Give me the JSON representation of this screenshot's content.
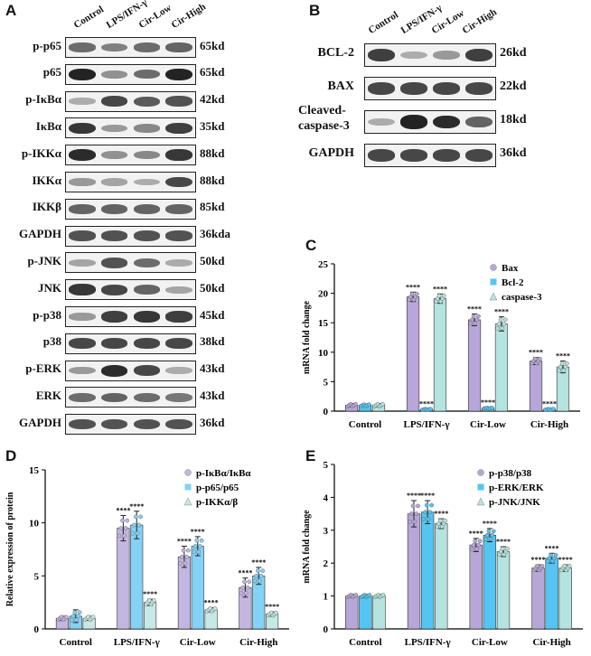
{
  "panels": {
    "A": "A",
    "B": "B",
    "C": "C",
    "D": "D",
    "E": "E"
  },
  "lanes": [
    "Control",
    "LPS/IFN-γ",
    "Cir-Low",
    "Cir-High"
  ],
  "blots_A": [
    {
      "name": "p-p65",
      "kd": "65kd",
      "levels": [
        0.55,
        0.45,
        0.55,
        0.6
      ]
    },
    {
      "name": "p65",
      "kd": "65kd",
      "levels": [
        0.95,
        0.35,
        0.55,
        0.95
      ]
    },
    {
      "name": "p-IκBα",
      "kd": "42kd",
      "levels": [
        0.2,
        0.75,
        0.65,
        0.7
      ]
    },
    {
      "name": "IκBα",
      "kd": "35kd",
      "levels": [
        0.85,
        0.3,
        0.4,
        0.8
      ]
    },
    {
      "name": "p-IKKα",
      "kd": "88kd",
      "levels": [
        0.9,
        0.35,
        0.4,
        0.85
      ]
    },
    {
      "name": "IKKα",
      "kd": "88kd",
      "levels": [
        0.3,
        0.25,
        0.2,
        0.75
      ]
    },
    {
      "name": "IKKβ",
      "kd": "85kd",
      "levels": [
        0.6,
        0.6,
        0.6,
        0.6
      ]
    },
    {
      "name": "GAPDH",
      "kd": "36kda",
      "levels": [
        0.7,
        0.7,
        0.7,
        0.7
      ]
    },
    {
      "name": "p-JNK",
      "kd": "50kd",
      "levels": [
        0.25,
        0.7,
        0.55,
        0.2
      ]
    },
    {
      "name": "JNK",
      "kd": "50kd",
      "levels": [
        0.85,
        0.75,
        0.6,
        0.25
      ]
    },
    {
      "name": "p-p38",
      "kd": "45kd",
      "levels": [
        0.3,
        0.8,
        0.85,
        0.8
      ]
    },
    {
      "name": "p38",
      "kd": "38kd",
      "levels": [
        0.75,
        0.75,
        0.75,
        0.75
      ]
    },
    {
      "name": "p-ERK",
      "kd": "43kd",
      "levels": [
        0.3,
        0.9,
        0.75,
        0.2
      ]
    },
    {
      "name": "ERK",
      "kd": "43kd",
      "levels": [
        0.55,
        0.6,
        0.55,
        0.5
      ]
    },
    {
      "name": "GAPDH",
      "kd": "36kd",
      "levels": [
        0.7,
        0.7,
        0.7,
        0.7
      ]
    }
  ],
  "blots_B": [
    {
      "name": "BCL-2",
      "kd": "26kd",
      "levels": [
        0.8,
        0.2,
        0.3,
        0.8
      ]
    },
    {
      "name": "BAX",
      "kd": "22kd",
      "levels": [
        0.75,
        0.75,
        0.75,
        0.75
      ]
    },
    {
      "name": "Cleaved-caspase-3",
      "name1": "Cleaved-",
      "name2": "caspase-3",
      "kd": "18kd",
      "levels": [
        0.2,
        0.95,
        0.9,
        0.6
      ]
    },
    {
      "name": "GAPDH",
      "kd": "36kd",
      "levels": [
        0.75,
        0.75,
        0.75,
        0.75
      ]
    }
  ],
  "chart_data": [
    {
      "id": "C",
      "type": "bar",
      "categories": [
        "Control",
        "LPS/IFN-γ",
        "Cir-Low",
        "Cir-High"
      ],
      "ylabel": "mRNA fold change",
      "ylim": [
        0,
        25
      ],
      "yticks": [
        0,
        5,
        10,
        15,
        20,
        25
      ],
      "series": [
        {
          "name": "Bax",
          "values": [
            1.0,
            19.4,
            15.5,
            8.5
          ],
          "errors": [
            0.3,
            0.8,
            1.0,
            0.6
          ],
          "color": "#b7a6d8"
        },
        {
          "name": "Bcl-2",
          "values": [
            1.0,
            0.3,
            0.5,
            0.3
          ],
          "errors": [
            0.2,
            0.1,
            0.1,
            0.1
          ],
          "color": "#54c5f2"
        },
        {
          "name": "caspase-3",
          "values": [
            1.0,
            19.1,
            14.8,
            7.5
          ],
          "errors": [
            0.3,
            0.8,
            1.2,
            1.0
          ],
          "color": "#b5e3df"
        }
      ],
      "annotations": [
        "****"
      ],
      "legend": "top-right"
    },
    {
      "id": "D",
      "type": "bar",
      "categories": [
        "Control",
        "LPS/IFN-γ",
        "Cir-Low",
        "Cir-High"
      ],
      "ylabel": "Relative expression of protein",
      "ylim": [
        0,
        15
      ],
      "yticks": [
        0,
        5,
        10,
        15
      ],
      "series": [
        {
          "name": "p-IκBα/IκBα",
          "values": [
            1.0,
            9.5,
            6.8,
            3.9
          ],
          "errors": [
            0.2,
            1.2,
            1.0,
            0.9
          ],
          "color": "#c3b6e0"
        },
        {
          "name": "p-p65/p65",
          "values": [
            1.2,
            9.8,
            7.8,
            5.0
          ],
          "errors": [
            0.6,
            1.3,
            0.9,
            0.8
          ],
          "color": "#84d2f5"
        },
        {
          "name": "p-IKKα/β",
          "values": [
            1.0,
            2.5,
            1.8,
            1.4
          ],
          "errors": [
            0.2,
            0.3,
            0.2,
            0.2
          ],
          "color": "#c6e9e5"
        }
      ],
      "annotations": [
        "****"
      ],
      "legend": "top-right"
    },
    {
      "id": "E",
      "type": "bar",
      "categories": [
        "Control",
        "LPS/IFN-γ",
        "Cir-Low",
        "Cir-High"
      ],
      "ylabel": "mRNA fold change",
      "ylim": [
        0,
        5
      ],
      "yticks": [
        0,
        1,
        2,
        3,
        4,
        5
      ],
      "series": [
        {
          "name": "p-p38/p38",
          "values": [
            1.0,
            3.5,
            2.55,
            1.85
          ],
          "errors": [
            0.05,
            0.4,
            0.2,
            0.1
          ],
          "color": "#b7a6d8"
        },
        {
          "name": "p-ERK/ERK",
          "values": [
            1.0,
            3.55,
            2.85,
            2.15
          ],
          "errors": [
            0.05,
            0.35,
            0.2,
            0.15
          ],
          "color": "#54c5f2"
        },
        {
          "name": "p-JNK/JNK",
          "values": [
            1.0,
            3.2,
            2.35,
            1.85
          ],
          "errors": [
            0.05,
            0.15,
            0.15,
            0.1
          ],
          "color": "#b5e3df"
        }
      ],
      "annotations": [
        "****"
      ],
      "legend": "top-right"
    }
  ]
}
